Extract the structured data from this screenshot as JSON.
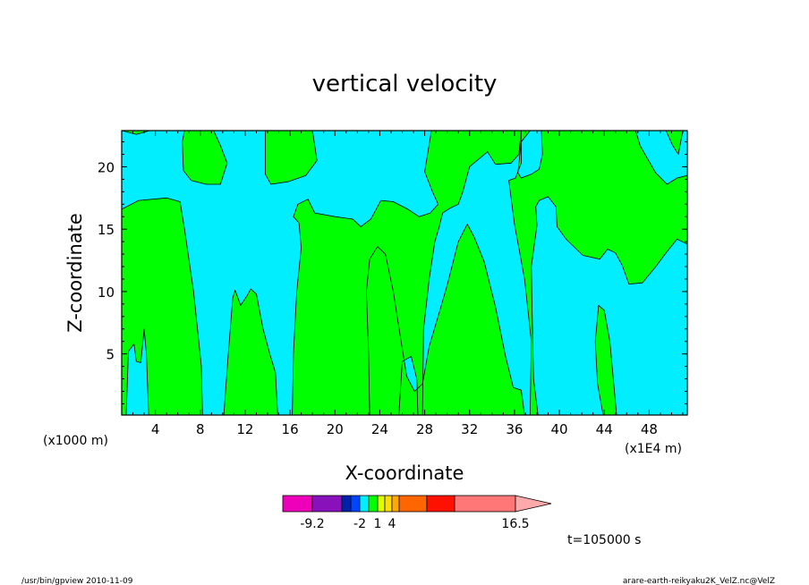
{
  "chart_data": {
    "type": "heatmap",
    "title": "vertical velocity",
    "xlabel": "X-coordinate",
    "ylabel": "Z-coordinate",
    "x_unit_left": "(x1000 m)",
    "x_unit_right": "(x1E4 m)",
    "x_ticks": [
      4,
      8,
      12,
      16,
      20,
      24,
      28,
      32,
      36,
      40,
      44,
      48
    ],
    "y_ticks": [
      5,
      10,
      15,
      20
    ],
    "xlim": [
      1,
      51.4
    ],
    "ylim": [
      0.1,
      22.9
    ],
    "fill_colors": {
      "w_positive": "#00ff00",
      "w_negative": "#00eeff"
    },
    "positive_regions": [
      {
        "name": "left-column",
        "outline": [
          [
            1,
            16.6
          ],
          [
            2.5,
            17.3
          ],
          [
            5,
            17.5
          ],
          [
            6.2,
            17.2
          ],
          [
            6.6,
            15
          ],
          [
            7.4,
            10
          ],
          [
            8.1,
            4
          ],
          [
            8.2,
            0.1
          ],
          [
            3.4,
            0.1
          ],
          [
            3.2,
            5
          ],
          [
            3,
            7
          ],
          [
            2.7,
            4.3
          ],
          [
            2.3,
            4.4
          ],
          [
            2.1,
            5.8
          ],
          [
            1.6,
            5.2
          ],
          [
            1.4,
            0.1
          ],
          [
            1,
            0.1
          ]
        ]
      },
      {
        "name": "upper-left-cloud",
        "outline": [
          [
            1,
            22.9
          ],
          [
            2.3,
            22.6
          ],
          [
            3.5,
            22.9
          ],
          [
            1.2,
            22.9
          ]
        ]
      },
      {
        "name": "upper-cloud-8",
        "outline": [
          [
            6.4,
            22.9
          ],
          [
            9.2,
            22.9
          ],
          [
            9.8,
            21.7
          ],
          [
            10.4,
            20.3
          ],
          [
            9.8,
            18.6
          ],
          [
            8.5,
            18.6
          ],
          [
            7.2,
            18.9
          ],
          [
            6.5,
            19.7
          ],
          [
            6.4,
            22
          ],
          [
            6.6,
            22.9
          ]
        ]
      },
      {
        "name": "upper-cloud-14",
        "outline": [
          [
            13.8,
            22.9
          ],
          [
            18,
            22.9
          ],
          [
            18.4,
            20.5
          ],
          [
            17.4,
            19.3
          ],
          [
            15.8,
            18.8
          ],
          [
            14.3,
            18.6
          ],
          [
            13.8,
            19.4
          ]
        ]
      },
      {
        "name": "column-11",
        "outline": [
          [
            11,
            0.1
          ],
          [
            10.1,
            0.1
          ],
          [
            10.5,
            5
          ],
          [
            10.9,
            9.5
          ],
          [
            11.1,
            10.1
          ],
          [
            11.6,
            8.9
          ],
          [
            12.2,
            9.7
          ],
          [
            12.5,
            10.2
          ],
          [
            13,
            9.8
          ],
          [
            13.6,
            7
          ],
          [
            14.2,
            5
          ],
          [
            14.7,
            3.5
          ],
          [
            14.9,
            0.1
          ]
        ]
      },
      {
        "name": "central-band",
        "outline": [
          [
            16.2,
            0.1
          ],
          [
            16.3,
            5
          ],
          [
            16.6,
            10
          ],
          [
            17,
            13.5
          ],
          [
            16.8,
            15.5
          ],
          [
            16.3,
            16
          ],
          [
            16.7,
            17
          ],
          [
            17.6,
            17.4
          ],
          [
            18.2,
            16.3
          ],
          [
            20,
            16
          ],
          [
            21.6,
            15.8
          ],
          [
            22.3,
            15.2
          ],
          [
            23.2,
            15.8
          ],
          [
            24.1,
            17.3
          ],
          [
            25.2,
            17.2
          ],
          [
            26.5,
            16.6
          ],
          [
            27.5,
            16
          ],
          [
            28.5,
            16.3
          ],
          [
            29.2,
            17
          ],
          [
            28.7,
            18
          ],
          [
            28,
            19.6
          ],
          [
            28.6,
            22.9
          ],
          [
            36.6,
            22.9
          ],
          [
            36.4,
            21
          ],
          [
            35.7,
            20.3
          ],
          [
            34.3,
            20.2
          ],
          [
            33.6,
            21.2
          ],
          [
            32,
            20
          ],
          [
            31.4,
            18
          ],
          [
            31,
            17
          ],
          [
            30.3,
            16.7
          ],
          [
            29.6,
            16.3
          ],
          [
            29.3,
            15.2
          ],
          [
            28.9,
            14
          ],
          [
            28.4,
            11
          ],
          [
            27.9,
            7
          ],
          [
            27.8,
            0.1
          ],
          [
            27.4,
            0.1
          ],
          [
            27.3,
            3
          ],
          [
            26.8,
            4.8
          ],
          [
            26,
            4.4
          ],
          [
            25.7,
            0.1
          ],
          [
            23.1,
            0.1
          ],
          [
            23,
            5
          ],
          [
            22.8,
            10
          ],
          [
            23.1,
            12.6
          ],
          [
            23.8,
            13.6
          ],
          [
            24.5,
            13
          ],
          [
            25.2,
            10
          ],
          [
            25.9,
            6
          ],
          [
            26.4,
            3.2
          ],
          [
            27.1,
            2
          ],
          [
            27.8,
            2.6
          ],
          [
            28.4,
            5.6
          ],
          [
            29.2,
            8
          ],
          [
            30,
            10.5
          ],
          [
            31,
            14
          ],
          [
            31.8,
            15.4
          ],
          [
            32.4,
            14.4
          ],
          [
            33.3,
            12.4
          ],
          [
            34.3,
            8.8
          ],
          [
            35.2,
            4.8
          ],
          [
            35.9,
            2.3
          ],
          [
            36.6,
            2.1
          ],
          [
            36.9,
            0.1
          ]
        ]
      },
      {
        "name": "right-band",
        "outline": [
          [
            38.1,
            0.1
          ],
          [
            37.7,
            3
          ],
          [
            37.6,
            7
          ],
          [
            37.5,
            12
          ],
          [
            38,
            15.3
          ],
          [
            37.9,
            16.8
          ],
          [
            38.2,
            17.3
          ],
          [
            39,
            17.6
          ],
          [
            39.7,
            16.8
          ],
          [
            39.8,
            15.2
          ],
          [
            40.6,
            14.2
          ],
          [
            42.1,
            12.9
          ],
          [
            43.6,
            12.6
          ],
          [
            44.3,
            13.4
          ],
          [
            45,
            13.1
          ],
          [
            45.6,
            12.1
          ],
          [
            46.2,
            10.6
          ],
          [
            47.4,
            10.7
          ],
          [
            48.6,
            12
          ],
          [
            49.5,
            13.1
          ],
          [
            50.5,
            14.2
          ],
          [
            51.4,
            13.8
          ],
          [
            51.4,
            19.3
          ],
          [
            50.5,
            19.1
          ],
          [
            49.6,
            18.6
          ],
          [
            48.6,
            19.5
          ],
          [
            47.7,
            20.9
          ],
          [
            47.2,
            21.7
          ],
          [
            46.8,
            22.9
          ],
          [
            38.4,
            22.9
          ],
          [
            38.5,
            21
          ],
          [
            38.2,
            19.8
          ],
          [
            37.5,
            19.4
          ],
          [
            36.6,
            19.1
          ],
          [
            36.3,
            19.5
          ],
          [
            36.6,
            22
          ],
          [
            37.4,
            22.9
          ],
          [
            37,
            22.9
          ],
          [
            36.6,
            22.9
          ],
          [
            36.6,
            20.3
          ],
          [
            36.1,
            19.1
          ],
          [
            35.5,
            18.9
          ],
          [
            36,
            15.4
          ],
          [
            36.9,
            11
          ],
          [
            37.5,
            6
          ],
          [
            37.4,
            0.1
          ]
        ]
      },
      {
        "name": "right-column-43",
        "outline": [
          [
            43.9,
            0.1
          ],
          [
            43.4,
            2.6
          ],
          [
            43.2,
            6
          ],
          [
            43.5,
            8.9
          ],
          [
            44,
            8.5
          ],
          [
            44.5,
            6
          ],
          [
            45.1,
            0.1
          ]
        ]
      },
      {
        "name": "upper-right-cloud",
        "outline": [
          [
            49.5,
            22.9
          ],
          [
            50.1,
            21.7
          ],
          [
            50.6,
            21
          ],
          [
            51,
            22.9
          ]
        ]
      }
    ],
    "colorbar": {
      "tick_labels": [
        "-9.2",
        "-2",
        "1",
        "4",
        "16.5"
      ],
      "colors": [
        "#ee00bb",
        "#8811bb",
        "#0022aa",
        "#0044ff",
        "#00eeff",
        "#00ff00",
        "#ddff00",
        "#ffdd00",
        "#ffaa00",
        "#ff6600",
        "#ff1100",
        "#ff7777",
        "#ffaaaa"
      ]
    },
    "time_label": "t=105000 s"
  },
  "footer": {
    "left": "/usr/bin/gpview   2010-11-09",
    "right": "arare-earth-reikyaku2K_VelZ.nc@VelZ"
  }
}
